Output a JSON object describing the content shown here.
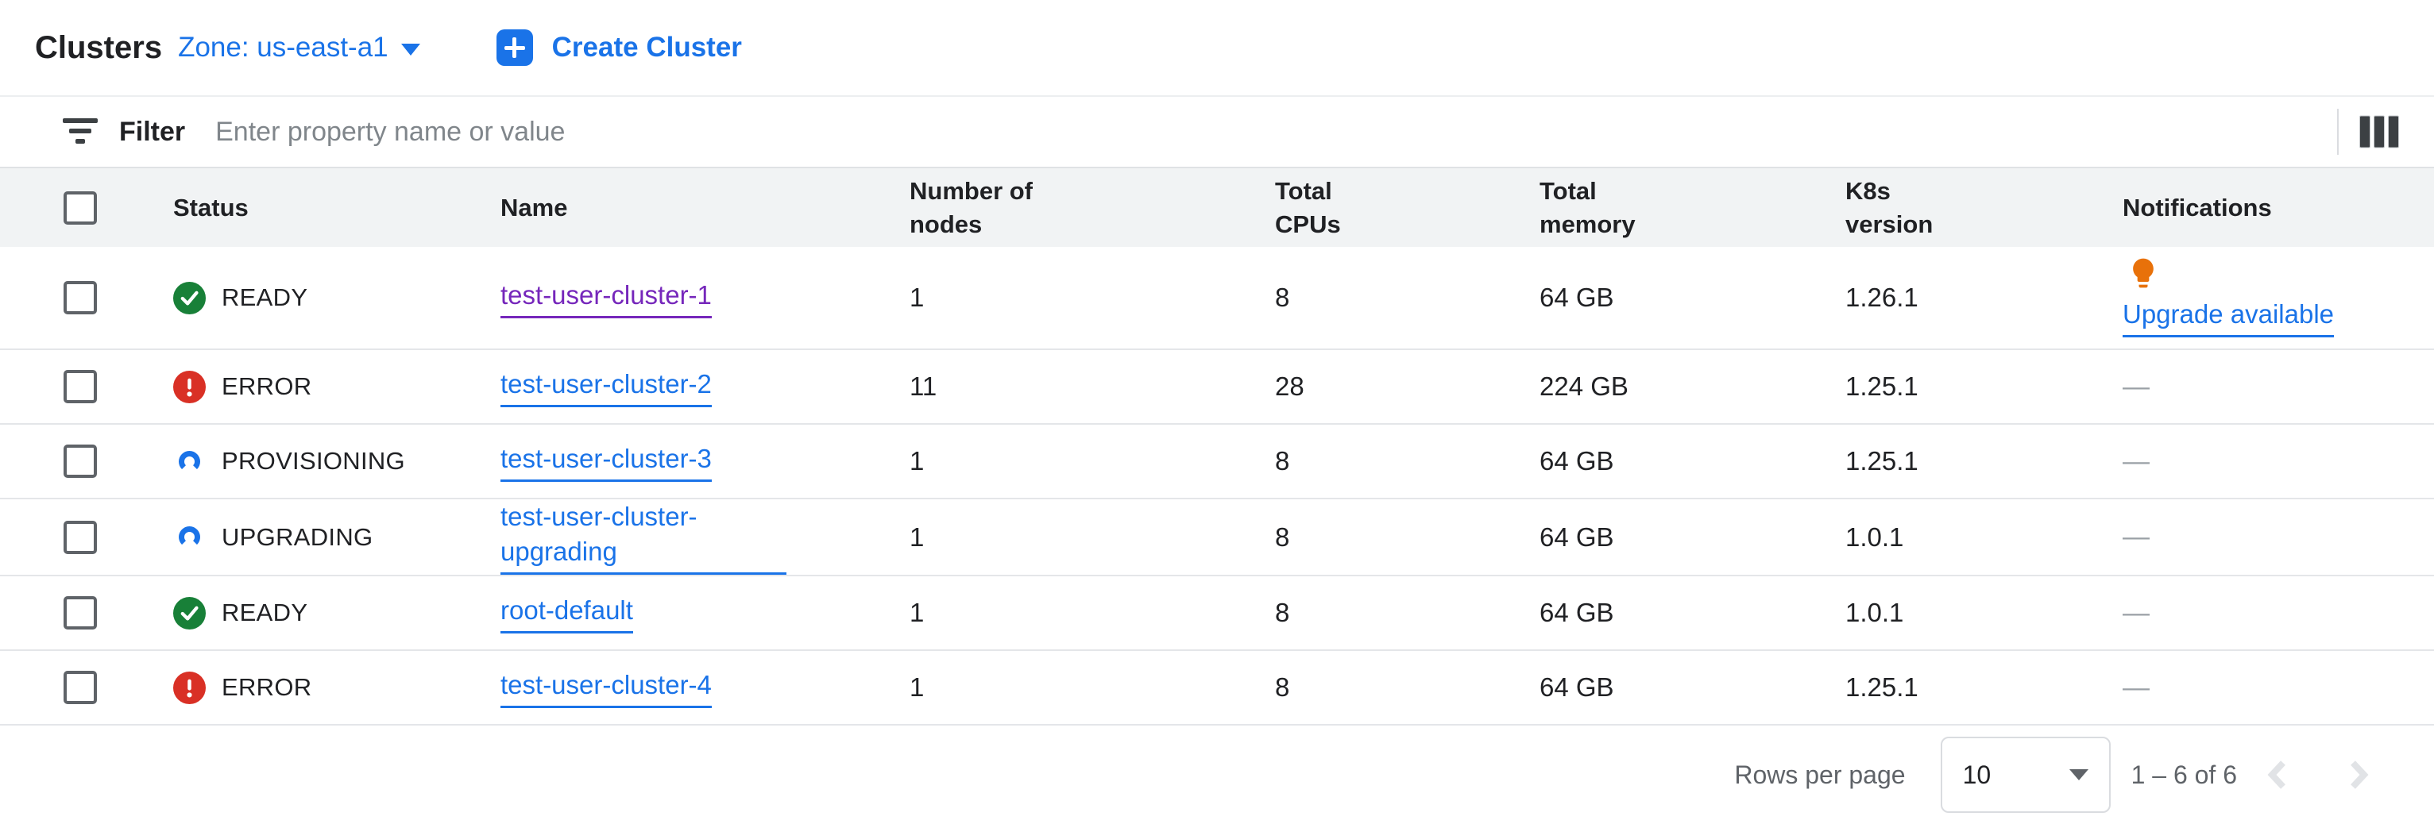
{
  "page": {
    "title": "Clusters",
    "zone_label": "Zone: us-east-a1",
    "create_label": "Create Cluster"
  },
  "filter": {
    "label": "Filter",
    "placeholder": "Enter property name or value"
  },
  "table": {
    "columns": [
      "Status",
      "Name",
      "Number of nodes",
      "Total CPUs",
      "Total memory",
      "K8s version",
      "Notifications"
    ],
    "no_notification_placeholder": "—",
    "rows": [
      {
        "status": "READY",
        "status_kind": "ready",
        "name": "test-user-cluster-1",
        "name_visited": true,
        "nodes": "1",
        "total_cpus": "8",
        "total_memory": "64 GB",
        "k8s_version": "1.26.1",
        "notification": "Upgrade available"
      },
      {
        "status": "ERROR",
        "status_kind": "error",
        "name": "test-user-cluster-2",
        "name_visited": false,
        "nodes": "11",
        "total_cpus": "28",
        "total_memory": "224 GB",
        "k8s_version": "1.25.1",
        "notification": null
      },
      {
        "status": "PROVISIONING",
        "status_kind": "in-progress",
        "name": "test-user-cluster-3",
        "name_visited": false,
        "nodes": "1",
        "total_cpus": "8",
        "total_memory": "64 GB",
        "k8s_version": "1.25.1",
        "notification": null
      },
      {
        "status": "UPGRADING",
        "status_kind": "in-progress",
        "name": "test-user-cluster-upgrading",
        "name_visited": false,
        "nodes": "1",
        "total_cpus": "8",
        "total_memory": "64 GB",
        "k8s_version": "1.0.1",
        "notification": null
      },
      {
        "status": "READY",
        "status_kind": "ready",
        "name": "root-default",
        "name_visited": false,
        "nodes": "1",
        "total_cpus": "8",
        "total_memory": "64 GB",
        "k8s_version": "1.0.1",
        "notification": null
      },
      {
        "status": "ERROR",
        "status_kind": "error",
        "name": "test-user-cluster-4",
        "name_visited": false,
        "nodes": "1",
        "total_cpus": "8",
        "total_memory": "64 GB",
        "k8s_version": "1.25.1",
        "notification": null
      }
    ]
  },
  "pagination": {
    "rows_per_page_label": "Rows per page",
    "page_size": "10",
    "range_label": "1 – 6 of 6"
  },
  "icons": {
    "create": "plus-icon",
    "zone": "chevron-down-icon",
    "filter": "filter-list-icon",
    "column_options": "column-display-icon",
    "ready": "check-circle-icon",
    "error": "error-circle-icon",
    "in_progress": "progress-spinner-icon",
    "notification": "lightbulb-icon",
    "pager_prev": "chevron-left-icon",
    "pager_next": "chevron-right-icon"
  },
  "colors": {
    "accent_blue": "#1a73e8",
    "visited_purple": "#7627bb",
    "success_green": "#188038",
    "error_red": "#d93025",
    "warning_orange": "#e8710a"
  }
}
